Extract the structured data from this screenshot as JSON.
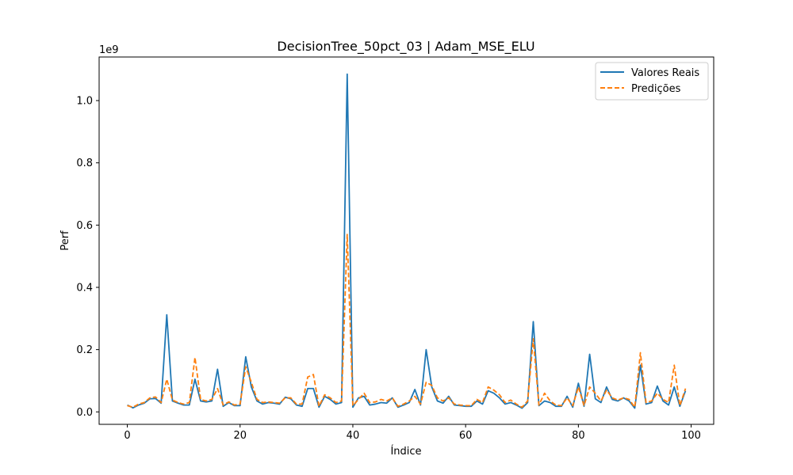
{
  "chart_data": {
    "type": "line",
    "title": "DecisionTree_50pct_03 | Adam_MSE_ELU",
    "xlabel": "Índice",
    "ylabel": "Perf",
    "y_scale_label": "1e9",
    "xlim": [
      -5,
      104
    ],
    "ylim": [
      -0.04,
      1.14
    ],
    "x_ticks": [
      0,
      20,
      40,
      60,
      80,
      100
    ],
    "y_ticks": [
      0.0,
      0.2,
      0.4,
      0.6,
      0.8,
      1.0
    ],
    "x_tick_labels": [
      "0",
      "20",
      "40",
      "60",
      "80",
      "100"
    ],
    "y_tick_labels": [
      "0.0",
      "0.2",
      "0.4",
      "0.6",
      "0.8",
      "1.0"
    ],
    "legend_position": "top-right",
    "grid": false,
    "x": [
      0,
      1,
      2,
      3,
      4,
      5,
      6,
      7,
      8,
      9,
      10,
      11,
      12,
      13,
      14,
      15,
      16,
      17,
      18,
      19,
      20,
      21,
      22,
      23,
      24,
      25,
      26,
      27,
      28,
      29,
      30,
      31,
      32,
      33,
      34,
      35,
      36,
      37,
      38,
      39,
      40,
      41,
      42,
      43,
      44,
      45,
      46,
      47,
      48,
      49,
      50,
      51,
      52,
      53,
      54,
      55,
      56,
      57,
      58,
      59,
      60,
      61,
      62,
      63,
      64,
      65,
      66,
      67,
      68,
      69,
      70,
      71,
      72,
      73,
      74,
      75,
      76,
      77,
      78,
      79,
      80,
      81,
      82,
      83,
      84,
      85,
      86,
      87,
      88,
      89,
      90,
      91,
      92,
      93,
      94,
      95,
      96,
      97,
      98,
      99
    ],
    "series": [
      {
        "name": "Valores Reais",
        "color": "#1f77b4",
        "dash": "solid",
        "values": [
          0.022,
          0.013,
          0.022,
          0.028,
          0.042,
          0.043,
          0.028,
          0.312,
          0.035,
          0.028,
          0.022,
          0.022,
          0.105,
          0.035,
          0.032,
          0.035,
          0.137,
          0.018,
          0.03,
          0.02,
          0.02,
          0.177,
          0.08,
          0.035,
          0.025,
          0.03,
          0.028,
          0.025,
          0.047,
          0.042,
          0.022,
          0.018,
          0.075,
          0.075,
          0.015,
          0.05,
          0.04,
          0.025,
          0.03,
          1.085,
          0.015,
          0.045,
          0.05,
          0.022,
          0.025,
          0.03,
          0.028,
          0.045,
          0.015,
          0.022,
          0.03,
          0.072,
          0.022,
          0.2,
          0.08,
          0.035,
          0.028,
          0.05,
          0.022,
          0.02,
          0.018,
          0.018,
          0.035,
          0.025,
          0.068,
          0.06,
          0.045,
          0.025,
          0.03,
          0.022,
          0.012,
          0.03,
          0.29,
          0.02,
          0.035,
          0.03,
          0.018,
          0.018,
          0.05,
          0.015,
          0.092,
          0.018,
          0.185,
          0.042,
          0.03,
          0.08,
          0.04,
          0.035,
          0.045,
          0.035,
          0.012,
          0.15,
          0.025,
          0.03,
          0.083,
          0.035,
          0.022,
          0.08,
          0.018,
          0.068
        ]
      },
      {
        "name": "Predições",
        "color": "#ff7f0e",
        "dash": "dashed",
        "values": [
          0.02,
          0.015,
          0.025,
          0.03,
          0.045,
          0.048,
          0.03,
          0.105,
          0.038,
          0.03,
          0.025,
          0.03,
          0.175,
          0.04,
          0.035,
          0.04,
          0.075,
          0.022,
          0.032,
          0.022,
          0.025,
          0.145,
          0.095,
          0.04,
          0.03,
          0.032,
          0.03,
          0.028,
          0.045,
          0.045,
          0.025,
          0.025,
          0.112,
          0.12,
          0.018,
          0.055,
          0.045,
          0.03,
          0.035,
          0.57,
          0.02,
          0.04,
          0.06,
          0.03,
          0.032,
          0.04,
          0.035,
          0.045,
          0.018,
          0.025,
          0.035,
          0.05,
          0.025,
          0.095,
          0.085,
          0.045,
          0.035,
          0.045,
          0.025,
          0.022,
          0.02,
          0.02,
          0.04,
          0.03,
          0.08,
          0.07,
          0.055,
          0.03,
          0.038,
          0.025,
          0.015,
          0.035,
          0.235,
          0.022,
          0.06,
          0.035,
          0.022,
          0.02,
          0.045,
          0.02,
          0.08,
          0.02,
          0.08,
          0.06,
          0.035,
          0.07,
          0.045,
          0.038,
          0.045,
          0.04,
          0.015,
          0.19,
          0.03,
          0.035,
          0.06,
          0.04,
          0.03,
          0.15,
          0.02,
          0.075
        ]
      }
    ]
  }
}
